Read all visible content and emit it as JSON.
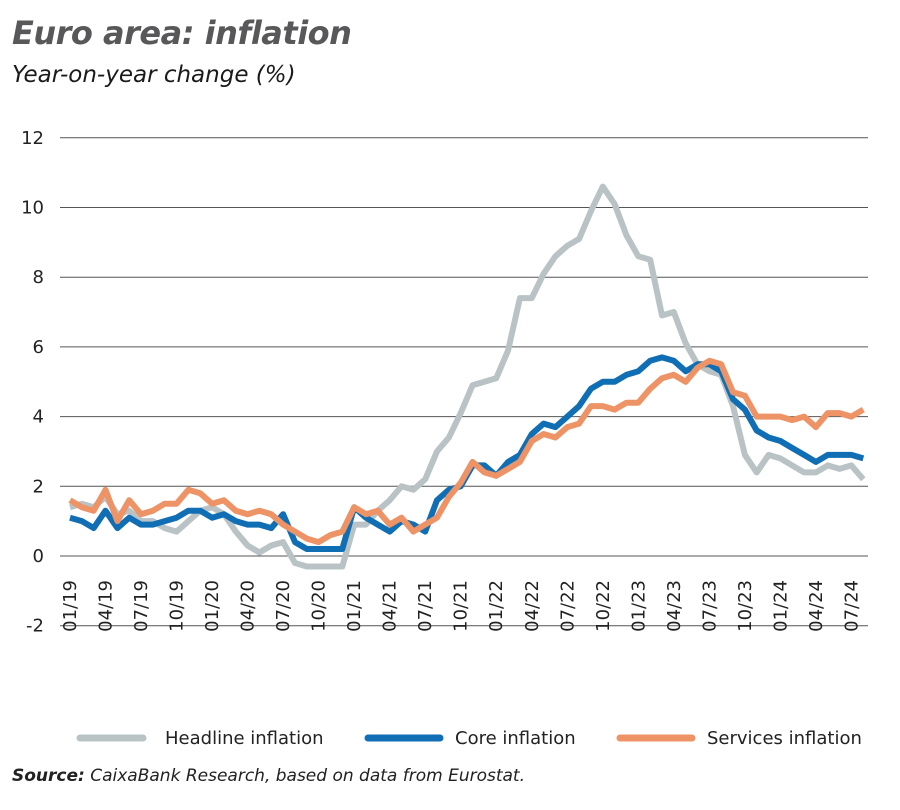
{
  "title": "Euro area: inflation",
  "subtitle": "Year-on-year change (%)",
  "source_label": "Source:",
  "source_text": " CaixaBank Research, based on data from Eurostat.",
  "chart_data": {
    "type": "line",
    "title": "Euro area: inflation",
    "ylabel": "Year-on-year change (%)",
    "ylim": [
      -2,
      12
    ],
    "yticks": [
      12,
      10,
      8,
      6,
      4,
      2,
      0,
      -2
    ],
    "grid": "horizontal",
    "legend": "bottom",
    "x_start": "01/19",
    "x_end": "08/24",
    "x_frequency": "monthly",
    "xticks": [
      "01/19",
      "04/19",
      "07/19",
      "10/19",
      "01/20",
      "04/20",
      "07/20",
      "10/20",
      "01/21",
      "04/21",
      "07/21",
      "10/21",
      "01/22",
      "04/22",
      "07/22",
      "10/22",
      "01/23",
      "04/23",
      "07/23",
      "10/23",
      "01/24",
      "04/24",
      "07/24"
    ],
    "series": [
      {
        "name": "Headline inflation",
        "color": "#b9c3c6",
        "values": [
          1.4,
          1.5,
          1.4,
          1.7,
          1.2,
          1.3,
          1.0,
          1.0,
          0.8,
          0.7,
          1.0,
          1.3,
          1.4,
          1.2,
          0.7,
          0.3,
          0.1,
          0.3,
          0.4,
          -0.2,
          -0.3,
          -0.3,
          -0.3,
          -0.3,
          0.9,
          0.9,
          1.3,
          1.6,
          2.0,
          1.9,
          2.2,
          3.0,
          3.4,
          4.1,
          4.9,
          5.0,
          5.1,
          5.9,
          7.4,
          7.4,
          8.1,
          8.6,
          8.9,
          9.1,
          9.9,
          10.6,
          10.1,
          9.2,
          8.6,
          8.5,
          6.9,
          7.0,
          6.1,
          5.5,
          5.3,
          5.2,
          4.3,
          2.9,
          2.4,
          2.9,
          2.8,
          2.6,
          2.4,
          2.4,
          2.6,
          2.5,
          2.6,
          2.2
        ]
      },
      {
        "name": "Core inflation",
        "color": "#0f6eb4",
        "values": [
          1.1,
          1.0,
          0.8,
          1.3,
          0.8,
          1.1,
          0.9,
          0.9,
          1.0,
          1.1,
          1.3,
          1.3,
          1.1,
          1.2,
          1.0,
          0.9,
          0.9,
          0.8,
          1.2,
          0.4,
          0.2,
          0.2,
          0.2,
          0.2,
          1.4,
          1.1,
          0.9,
          0.7,
          1.0,
          0.9,
          0.7,
          1.6,
          1.9,
          2.0,
          2.6,
          2.6,
          2.3,
          2.7,
          2.9,
          3.5,
          3.8,
          3.7,
          4.0,
          4.3,
          4.8,
          5.0,
          5.0,
          5.2,
          5.3,
          5.6,
          5.7,
          5.6,
          5.3,
          5.5,
          5.5,
          5.3,
          4.5,
          4.2,
          3.6,
          3.4,
          3.3,
          3.1,
          2.9,
          2.7,
          2.9,
          2.9,
          2.9,
          2.8
        ]
      },
      {
        "name": "Services inflation",
        "color": "#ee9366",
        "values": [
          1.6,
          1.4,
          1.3,
          1.9,
          1.0,
          1.6,
          1.2,
          1.3,
          1.5,
          1.5,
          1.9,
          1.8,
          1.5,
          1.6,
          1.3,
          1.2,
          1.3,
          1.2,
          0.9,
          0.7,
          0.5,
          0.4,
          0.6,
          0.7,
          1.4,
          1.2,
          1.3,
          0.9,
          1.1,
          0.7,
          0.9,
          1.1,
          1.7,
          2.1,
          2.7,
          2.4,
          2.3,
          2.5,
          2.7,
          3.3,
          3.5,
          3.4,
          3.7,
          3.8,
          4.3,
          4.3,
          4.2,
          4.4,
          4.4,
          4.8,
          5.1,
          5.2,
          5.0,
          5.4,
          5.6,
          5.5,
          4.7,
          4.6,
          4.0,
          4.0,
          4.0,
          3.9,
          4.0,
          3.7,
          4.1,
          4.1,
          4.0,
          4.2
        ]
      }
    ]
  }
}
